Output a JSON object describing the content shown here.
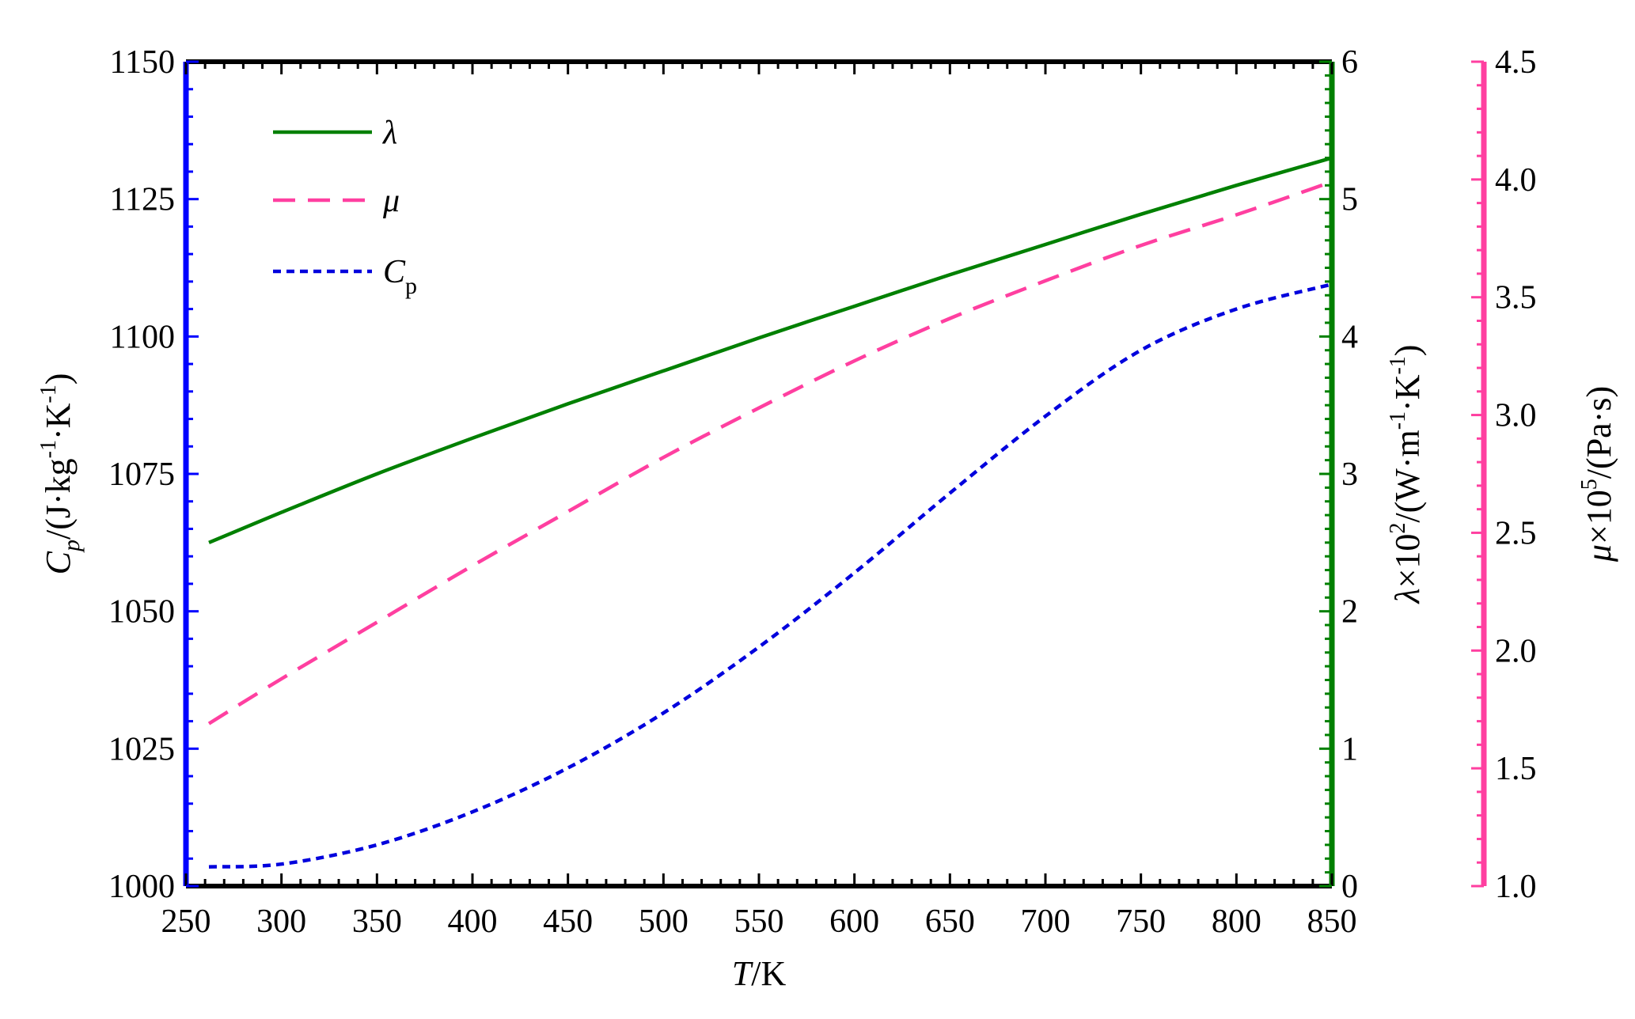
{
  "chart_data": {
    "type": "line",
    "x": {
      "label_italic": "T",
      "label_rest": "/K",
      "ticks": [
        250,
        300,
        350,
        400,
        450,
        500,
        550,
        600,
        650,
        700,
        750,
        800,
        850
      ],
      "range": [
        250,
        850
      ]
    },
    "y_left": {
      "label_base": "C",
      "label_sub": "p",
      "label_rest": "/(J·kg",
      "label_sup1": "-1",
      "label_mid": "·K",
      "label_sup2": "-1",
      "label_end": ")",
      "ticks": [
        1000,
        1025,
        1050,
        1075,
        1100,
        1125,
        1150
      ],
      "range": [
        1000,
        1150
      ],
      "color": "#0000ff"
    },
    "y_right1": {
      "label_base": "λ",
      "label_rest": "×10",
      "label_sup0": "2",
      "label_mid1": "/(W·m",
      "label_sup1": "-1",
      "label_mid2": "·K",
      "label_sup2": "-1",
      "label_end": ")",
      "ticks": [
        0,
        1,
        2,
        3,
        4,
        5,
        6
      ],
      "range": [
        0,
        6
      ],
      "color": "#008000"
    },
    "y_right2": {
      "label_base": "μ",
      "label_rest": "×10",
      "label_sup0": "5",
      "label_end": "/(Pa·s)",
      "ticks": [
        "1.0",
        "1.5",
        "2.0",
        "2.5",
        "3.0",
        "3.5",
        "4.0",
        "4.5"
      ],
      "range": [
        1.0,
        4.5
      ],
      "color": "#ff3fa0"
    },
    "series": [
      {
        "name": "λ",
        "axis": "y_right1",
        "color": "#008000",
        "dash": "solid",
        "x": [
          262,
          300,
          350,
          400,
          450,
          500,
          550,
          600,
          650,
          700,
          750,
          800,
          850
        ],
        "values": [
          2.5,
          2.72,
          3.0,
          3.26,
          3.51,
          3.75,
          3.99,
          4.22,
          4.45,
          4.67,
          4.89,
          5.1,
          5.3
        ]
      },
      {
        "name": "μ",
        "axis": "y_right2",
        "color": "#ff3fa0",
        "dash": "dashed",
        "x": [
          262,
          300,
          350,
          400,
          450,
          500,
          550,
          600,
          650,
          700,
          750,
          800,
          850
        ],
        "values": [
          1.69,
          1.88,
          2.12,
          2.36,
          2.59,
          2.82,
          3.03,
          3.23,
          3.41,
          3.57,
          3.72,
          3.85,
          3.99
        ]
      },
      {
        "name": "C",
        "name_sub": "p",
        "axis": "y_left",
        "color": "#0000dd",
        "dash": "dotted",
        "x": [
          262,
          300,
          350,
          400,
          450,
          500,
          550,
          600,
          650,
          700,
          750,
          800,
          850
        ],
        "values": [
          1003.5,
          1004.0,
          1007.5,
          1013.5,
          1021.5,
          1031.5,
          1043.5,
          1057.0,
          1071.5,
          1085.5,
          1097.5,
          1105.0,
          1109.5
        ]
      }
    ],
    "legend_position": "top-left"
  }
}
